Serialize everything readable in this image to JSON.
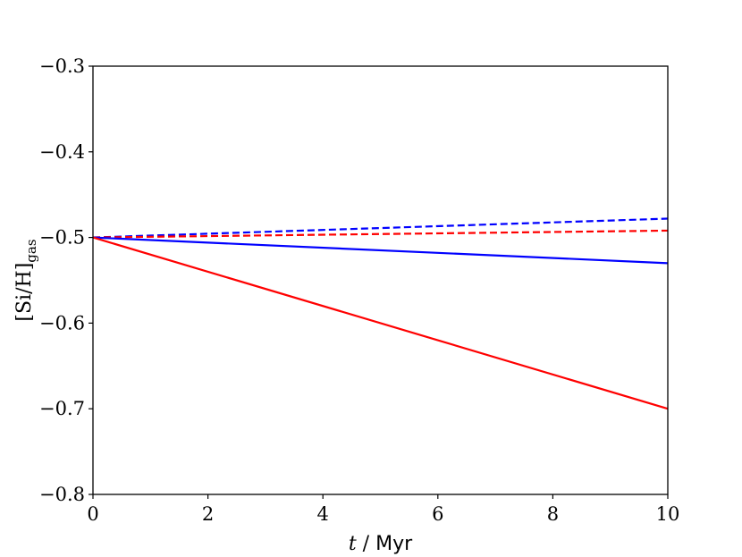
{
  "chart_data": {
    "type": "line",
    "xlabel": {
      "var": "t",
      "sep": " / ",
      "unit": "Myr"
    },
    "ylabel": {
      "main": "[Si/H]",
      "sub": "gas"
    },
    "xlim": [
      0,
      10
    ],
    "ylim": [
      -0.8,
      -0.3
    ],
    "xticks": [
      0,
      2,
      4,
      6,
      8,
      10
    ],
    "yticks": [
      -0.8,
      -0.7,
      -0.6,
      -0.5,
      -0.4,
      -0.3
    ],
    "xtick_labels": [
      "0",
      "2",
      "4",
      "6",
      "8",
      "10"
    ],
    "ytick_labels": [
      "−0.8",
      "−0.7",
      "−0.6",
      "−0.5",
      "−0.4",
      "−0.3"
    ],
    "grid": false,
    "series": [
      {
        "color": "#0000ff",
        "style": "dashed",
        "x": [
          0,
          10
        ],
        "y": [
          -0.5,
          -0.478
        ]
      },
      {
        "color": "#ff0000",
        "style": "dashed",
        "x": [
          0,
          10
        ],
        "y": [
          -0.5,
          -0.492
        ]
      },
      {
        "color": "#0000ff",
        "style": "solid",
        "x": [
          0,
          10
        ],
        "y": [
          -0.5,
          -0.53
        ]
      },
      {
        "color": "#ff0000",
        "style": "solid",
        "x": [
          0,
          10
        ],
        "y": [
          -0.5,
          -0.7
        ]
      }
    ]
  }
}
